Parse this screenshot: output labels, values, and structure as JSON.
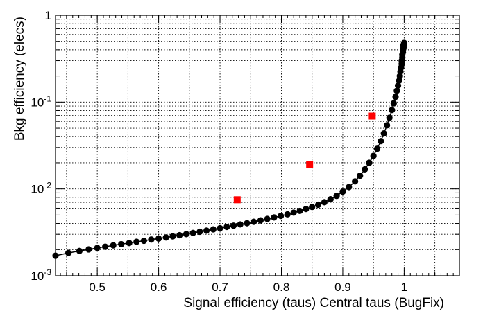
{
  "chart_data": {
    "type": "scatter",
    "title": "",
    "xlabel": "Signal efficiency (taus) Central taus (BugFix)",
    "ylabel": "Bkg efficiency (elecs)",
    "xlim": [
      0.432,
      1.09
    ],
    "ylim": [
      0.001,
      1
    ],
    "y_scale": "log",
    "grid": true,
    "x_ticks": [
      {
        "value": 0.5,
        "label": "0.5"
      },
      {
        "value": 0.6,
        "label": "0.6"
      },
      {
        "value": 0.7,
        "label": "0.7"
      },
      {
        "value": 0.8,
        "label": "0.8"
      },
      {
        "value": 0.9,
        "label": "0.9"
      },
      {
        "value": 1.0,
        "label": "1"
      }
    ],
    "y_ticks": [
      {
        "value": 0.001,
        "base": "10",
        "exp": "-3"
      },
      {
        "value": 0.01,
        "base": "10",
        "exp": "-2"
      },
      {
        "value": 0.1,
        "base": "10",
        "exp": "-1"
      },
      {
        "value": 1,
        "base": "1",
        "exp": ""
      }
    ],
    "series": [
      {
        "color": "#000000",
        "marker": "circle",
        "line": true,
        "x": [
          0.432,
          0.453,
          0.471,
          0.486,
          0.5,
          0.513,
          0.526,
          0.539,
          0.552,
          0.564,
          0.576,
          0.588,
          0.6,
          0.612,
          0.623,
          0.634,
          0.645,
          0.656,
          0.667,
          0.678,
          0.689,
          0.7,
          0.711,
          0.722,
          0.733,
          0.744,
          0.755,
          0.766,
          0.777,
          0.788,
          0.799,
          0.81,
          0.82,
          0.83,
          0.84,
          0.85,
          0.86,
          0.87,
          0.88,
          0.89,
          0.9,
          0.91,
          0.92,
          0.928,
          0.936,
          0.943,
          0.95,
          0.956,
          0.962,
          0.967,
          0.972,
          0.976,
          0.98,
          0.983,
          0.986,
          0.988,
          0.99,
          0.992,
          0.993,
          0.994,
          0.995,
          0.996,
          0.996,
          0.997,
          0.997,
          0.998,
          0.998,
          0.999,
          0.999,
          0.999,
          1.0,
          1.0
        ],
        "y": [
          0.0017,
          0.00183,
          0.00193,
          0.00201,
          0.00209,
          0.00216,
          0.00224,
          0.00231,
          0.00238,
          0.00246,
          0.00253,
          0.00261,
          0.00268,
          0.00276,
          0.00284,
          0.00293,
          0.00302,
          0.00311,
          0.00321,
          0.00331,
          0.00342,
          0.00353,
          0.00365,
          0.00377,
          0.0039,
          0.00403,
          0.00418,
          0.00434,
          0.00451,
          0.00469,
          0.00489,
          0.0051,
          0.00533,
          0.00558,
          0.00587,
          0.0062,
          0.00658,
          0.00703,
          0.0076,
          0.0083,
          0.0093,
          0.0105,
          0.0122,
          0.0142,
          0.0168,
          0.02,
          0.024,
          0.029,
          0.0355,
          0.0435,
          0.054,
          0.066,
          0.081,
          0.097,
          0.115,
          0.135,
          0.155,
          0.177,
          0.2,
          0.224,
          0.25,
          0.275,
          0.3,
          0.325,
          0.35,
          0.375,
          0.4,
          0.42,
          0.44,
          0.455,
          0.47,
          0.48
        ]
      },
      {
        "color": "#ff0000",
        "marker": "square",
        "line": false,
        "x": [
          0.728,
          0.846,
          0.948
        ],
        "y": [
          0.0075,
          0.019,
          0.069
        ]
      }
    ]
  }
}
